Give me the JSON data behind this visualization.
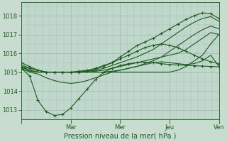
{
  "xlabel": "Pression niveau de la mer( hPa )",
  "bg_color": "#c8ddd0",
  "plot_bg_color": "#c0d8cc",
  "line_color": "#1a5c1a",
  "grid_color": "#9cbcac",
  "ylim": [
    1012.5,
    1018.7
  ],
  "xlim": [
    0.0,
    1.0
  ],
  "yticks": [
    1013,
    1014,
    1015,
    1016,
    1017,
    1018
  ],
  "day_labels": [
    "Mar",
    "Mer",
    "Jeu",
    "Ven"
  ],
  "day_positions": [
    0.25,
    0.5,
    0.75,
    1.0
  ],
  "series": [
    {
      "marker": true,
      "values_x": [
        0,
        4,
        8,
        12,
        16,
        20,
        24,
        28,
        32,
        36,
        40,
        44,
        48,
        52,
        56,
        60,
        64,
        68,
        72,
        76,
        80,
        84,
        88,
        92,
        96
      ],
      "values_y": [
        1015.2,
        1014.8,
        1013.5,
        1012.9,
        1012.7,
        1012.75,
        1013.1,
        1013.6,
        1014.1,
        1014.6,
        1015.0,
        1015.2,
        1015.35,
        1015.45,
        1015.5,
        1015.52,
        1015.5,
        1015.45,
        1015.4,
        1015.38,
        1015.36,
        1015.34,
        1015.32,
        1015.3,
        1015.28
      ]
    },
    {
      "marker": false,
      "values_x": [
        0,
        4,
        8,
        12,
        16,
        20,
        24,
        28,
        32,
        36,
        40,
        44,
        48,
        52,
        56,
        60,
        64,
        68,
        72,
        76,
        80,
        84,
        88,
        92,
        96
      ],
      "values_y": [
        1015.3,
        1015.1,
        1015.0,
        1015.0,
        1015.0,
        1015.0,
        1015.0,
        1015.0,
        1015.0,
        1015.05,
        1015.1,
        1015.2,
        1015.3,
        1015.4,
        1015.5,
        1015.6,
        1015.7,
        1015.8,
        1015.9,
        1016.0,
        1016.2,
        1016.5,
        1016.8,
        1017.1,
        1017.0
      ]
    },
    {
      "marker": false,
      "values_x": [
        0,
        4,
        8,
        12,
        16,
        20,
        24,
        28,
        32,
        36,
        40,
        44,
        48,
        52,
        56,
        60,
        64,
        68,
        72,
        76,
        80,
        84,
        88,
        92,
        96
      ],
      "values_y": [
        1015.4,
        1015.2,
        1015.1,
        1015.0,
        1015.0,
        1015.0,
        1015.0,
        1015.0,
        1015.0,
        1015.0,
        1015.0,
        1015.0,
        1015.0,
        1015.0,
        1015.0,
        1015.0,
        1015.0,
        1015.0,
        1015.0,
        1015.1,
        1015.3,
        1015.6,
        1015.9,
        1016.5,
        1017.0
      ]
    },
    {
      "marker": true,
      "values_x": [
        0,
        4,
        8,
        12,
        16,
        20,
        24,
        28,
        32,
        36,
        40,
        44,
        48,
        52,
        56,
        60,
        64,
        68,
        72,
        76,
        80,
        84,
        88,
        92,
        96
      ],
      "values_y": [
        1015.5,
        1015.3,
        1015.1,
        1015.0,
        1015.0,
        1015.0,
        1015.0,
        1015.05,
        1015.1,
        1015.2,
        1015.35,
        1015.5,
        1015.7,
        1015.9,
        1016.1,
        1016.3,
        1016.42,
        1016.5,
        1016.42,
        1016.3,
        1016.1,
        1015.9,
        1015.7,
        1015.55,
        1015.45
      ]
    },
    {
      "marker": false,
      "values_x": [
        0,
        4,
        8,
        12,
        16,
        20,
        24,
        28,
        32,
        36,
        40,
        44,
        48,
        52,
        56,
        60,
        64,
        68,
        72,
        76,
        80,
        84,
        88,
        92,
        96
      ],
      "values_y": [
        1015.2,
        1015.0,
        1014.9,
        1014.7,
        1014.55,
        1014.45,
        1014.4,
        1014.45,
        1014.55,
        1014.7,
        1014.85,
        1015.0,
        1015.1,
        1015.2,
        1015.3,
        1015.4,
        1015.5,
        1015.55,
        1015.5,
        1015.45,
        1015.4,
        1015.45,
        1015.6,
        1015.9,
        1015.3
      ]
    },
    {
      "marker": true,
      "values_x": [
        0,
        4,
        8,
        12,
        16,
        20,
        24,
        28,
        32,
        36,
        40,
        44,
        48,
        52,
        56,
        60,
        64,
        68,
        72,
        76,
        80,
        84,
        88,
        92,
        96
      ],
      "values_y": [
        1015.3,
        1015.2,
        1015.1,
        1015.0,
        1015.0,
        1015.0,
        1015.0,
        1015.0,
        1015.05,
        1015.15,
        1015.3,
        1015.5,
        1015.8,
        1016.1,
        1016.4,
        1016.6,
        1016.8,
        1017.05,
        1017.3,
        1017.55,
        1017.8,
        1018.0,
        1018.15,
        1018.1,
        1017.85
      ]
    },
    {
      "marker": false,
      "values_x": [
        0,
        4,
        8,
        12,
        16,
        20,
        24,
        28,
        32,
        36,
        40,
        44,
        48,
        52,
        56,
        60,
        64,
        68,
        72,
        76,
        80,
        84,
        88,
        92,
        96
      ],
      "values_y": [
        1015.25,
        1015.1,
        1015.0,
        1015.0,
        1015.0,
        1015.0,
        1015.0,
        1015.0,
        1015.05,
        1015.1,
        1015.2,
        1015.35,
        1015.5,
        1015.65,
        1015.8,
        1016.0,
        1016.2,
        1016.5,
        1016.8,
        1017.1,
        1017.4,
        1017.65,
        1017.85,
        1017.95,
        1017.7
      ]
    },
    {
      "marker": false,
      "values_x": [
        0,
        4,
        8,
        12,
        16,
        20,
        24,
        28,
        32,
        36,
        40,
        44,
        48,
        52,
        56,
        60,
        64,
        68,
        72,
        76,
        80,
        84,
        88,
        92,
        96
      ],
      "values_y": [
        1015.15,
        1015.05,
        1015.0,
        1015.0,
        1015.0,
        1015.0,
        1015.0,
        1015.0,
        1015.0,
        1015.0,
        1015.0,
        1015.05,
        1015.1,
        1015.2,
        1015.3,
        1015.45,
        1015.6,
        1015.8,
        1016.1,
        1016.4,
        1016.7,
        1017.0,
        1017.25,
        1017.45,
        1017.3
      ]
    }
  ]
}
